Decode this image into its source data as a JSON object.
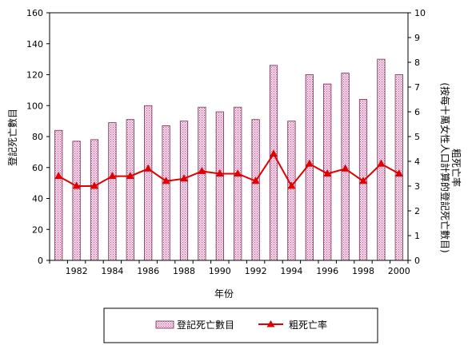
{
  "chart_data": {
    "type": "bar",
    "categories": [
      "1981",
      "1982",
      "1983",
      "1984",
      "1985",
      "1986",
      "1987",
      "1988",
      "1989",
      "1990",
      "1991",
      "1992",
      "1993",
      "1994",
      "1995",
      "1996",
      "1997",
      "1998",
      "1999",
      "2000"
    ],
    "x_tick_labels": [
      "1982",
      "1984",
      "1986",
      "1988",
      "1990",
      "1992",
      "1994",
      "1996",
      "1998",
      "2000"
    ],
    "series": [
      {
        "name": "登記死亡數目",
        "type": "bar",
        "axis": "left",
        "values": [
          84,
          77,
          78,
          89,
          91,
          100,
          87,
          90,
          99,
          96,
          99,
          91,
          126,
          90,
          120,
          114,
          121,
          104,
          130,
          120
        ]
      },
      {
        "name": "粗死亡率",
        "type": "line",
        "axis": "right",
        "values": [
          3.4,
          3.0,
          3.0,
          3.4,
          3.4,
          3.7,
          3.2,
          3.3,
          3.6,
          3.5,
          3.5,
          3.2,
          4.3,
          3.0,
          3.9,
          3.5,
          3.7,
          3.2,
          3.9,
          3.5
        ]
      }
    ],
    "title": "",
    "xlabel": "年份",
    "ylabel_left": "登記死亡數目",
    "ylabel_right_lines": [
      "粗死亡率",
      "(按每十萬女性人口計算的登記死亡數目)"
    ],
    "ylim_left": [
      0,
      160
    ],
    "yticks_left": [
      0,
      20,
      40,
      60,
      80,
      100,
      120,
      140,
      160
    ],
    "ylim_right": [
      0,
      10
    ],
    "yticks_right": [
      0,
      1,
      2,
      3,
      4,
      5,
      6,
      7,
      8,
      9,
      10
    ],
    "grid": false,
    "legend_position": "bottom",
    "colors": {
      "bar_fill": "#f6dcec",
      "bar_hatch": "#c0508f",
      "bar_stroke": "#6e2f52",
      "line": "#e00000",
      "axis": "#000000"
    }
  }
}
